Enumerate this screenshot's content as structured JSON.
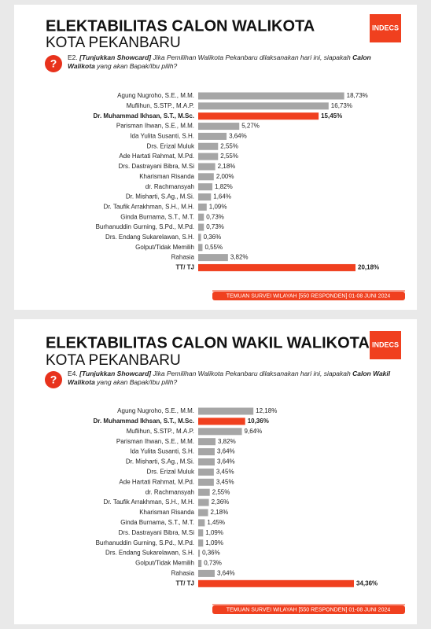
{
  "chart_data": [
    {
      "type": "bar",
      "orientation": "horizontal",
      "title": "ELEKTABILITAS CALON WALIKOTA",
      "subtitle": "KOTA PEKANBARU",
      "logo": "INDECS",
      "question": [
        "E2.",
        "[Tunjukkan Showcard]",
        "Jika Pemilihan Walikota Pekanbaru dilaksanakan hari ini, siapakah",
        "Calon Walikota",
        "yang akan Bapak/Ibu pilih?"
      ],
      "footer": "TEMUAN SURVEI WILAYAH [550 RESPONDEN] 01-08 JUNI 2024",
      "categories": [
        "Agung Nugroho, S.E., M.M.",
        "Muflihun, S.STP., M.A.P.",
        "Dr. Muhammad Ikhsan, S.T., M.Sc.",
        "Parisman Ihwan, S.E., M.M.",
        "Ida Yulita Susanti, S.H.",
        "Drs. Erizal Muluk",
        "Ade Hartati Rahmat, M.Pd.",
        "Drs. Dastrayani Bibra, M.Si",
        "Kharisman Risanda",
        "dr. Rachmansyah",
        "Dr. Misharti, S.Ag., M.Si.",
        "Dr. Taufik Arrakhman, S.H., M.H.",
        "Ginda Burnama, S.T., M.T.",
        "Burhanuddin Gurning, S.Pd., M.Pd.",
        "Drs. Endang Sukarelawan, S.H.",
        "Golput/Tidak Memilih",
        "Rahasia",
        "TT/ TJ"
      ],
      "values": [
        18.73,
        16.73,
        15.45,
        5.27,
        3.64,
        2.55,
        2.55,
        2.18,
        2.0,
        1.82,
        1.64,
        1.09,
        0.73,
        0.73,
        0.36,
        0.55,
        3.82,
        20.18
      ],
      "value_labels": [
        "18,73%",
        "16,73%",
        "15,45%",
        "5,27%",
        "3,64%",
        "2,55%",
        "2,55%",
        "2,18%",
        "2,00%",
        "1,82%",
        "1,64%",
        "1,09%",
        "0,73%",
        "0,73%",
        "0,36%",
        "0,55%",
        "3,82%",
        "20,18%"
      ],
      "color": "#a6a6a6",
      "colors": [
        "#a6a6a6",
        "#a6a6a6",
        "#f0401f",
        "#a6a6a6",
        "#a6a6a6",
        "#a6a6a6",
        "#a6a6a6",
        "#a6a6a6",
        "#a6a6a6",
        "#a6a6a6",
        "#a6a6a6",
        "#a6a6a6",
        "#a6a6a6",
        "#a6a6a6",
        "#a6a6a6",
        "#a6a6a6",
        "#a6a6a6",
        "#f0401f"
      ]
    },
    {
      "type": "bar",
      "orientation": "horizontal",
      "title": "ELEKTABILITAS CALON WAKIL WALIKOTA",
      "subtitle": "KOTA PEKANBARU",
      "logo": "INDECS",
      "question": [
        "E4.",
        "[Tunjukkan Showcard]",
        "Jika Pemilihan Walikota Pekanbaru dilaksanakan hari ini, siapakah",
        "Calon Wakil Walikota",
        "yang akan Bapak/Ibu pilih?"
      ],
      "footer": "TEMUAN SURVEI WILAYAH [550 RESPONDEN] 01-08 JUNI 2024",
      "categories": [
        "Agung Nugroho, S.E., M.M.",
        "Dr. Muhammad Ikhsan, S.T., M.Sc.",
        "Muflihun, S.STP., M.A.P.",
        "Parisman Ihwan, S.E., M.M.",
        "Ida Yulita Susanti, S.H.",
        "Dr. Misharti, S.Ag., M.Si.",
        "Drs. Erizal Muluk",
        "Ade Hartati Rahmat, M.Pd.",
        "dr. Rachmansyah",
        "Dr. Taufik Arrakhman, S.H., M.H.",
        "Kharisman Risanda",
        "Ginda Burnama, S.T., M.T.",
        "Drs. Dastrayani Bibra, M.Si",
        "Burhanuddin Gurning, S.Pd., M.Pd.",
        "Drs. Endang Sukarelawan, S.H.",
        "Golput/Tidak Memilih",
        "Rahasia",
        "TT/ TJ"
      ],
      "values": [
        12.18,
        10.36,
        9.64,
        3.82,
        3.64,
        3.64,
        3.45,
        3.45,
        2.55,
        2.36,
        2.18,
        1.45,
        1.09,
        1.09,
        0.36,
        0.73,
        3.64,
        34.36
      ],
      "value_labels": [
        "12,18%",
        "10,36%",
        "9,64%",
        "3,82%",
        "3,64%",
        "3,64%",
        "3,45%",
        "3,45%",
        "2,55%",
        "2,36%",
        "2,18%",
        "1,45%",
        "1,09%",
        "1,09%",
        "0,36%",
        "0,73%",
        "3,64%",
        "34,36%"
      ],
      "color": "#a6a6a6",
      "colors": [
        "#a6a6a6",
        "#f0401f",
        "#a6a6a6",
        "#a6a6a6",
        "#a6a6a6",
        "#a6a6a6",
        "#a6a6a6",
        "#a6a6a6",
        "#a6a6a6",
        "#a6a6a6",
        "#a6a6a6",
        "#a6a6a6",
        "#a6a6a6",
        "#a6a6a6",
        "#a6a6a6",
        "#a6a6a6",
        "#a6a6a6",
        "#f0401f"
      ]
    }
  ]
}
